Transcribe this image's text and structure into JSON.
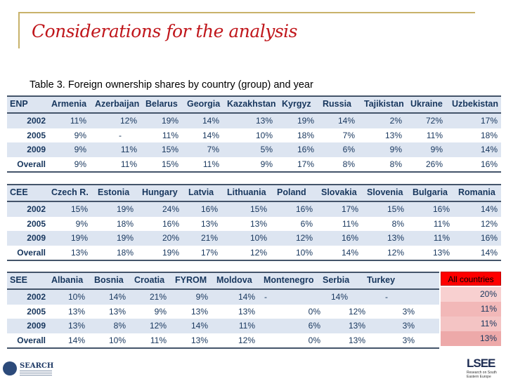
{
  "title": "Considerations for the analysis",
  "caption": "Table 3. Foreign ownership shares by country (group) and year",
  "tables": [
    {
      "group": "ENP",
      "columns": [
        "Armenia",
        "Azerbaijan",
        "Belarus",
        "Georgia",
        "Kazakhstan",
        "Kyrgyz",
        "Russia",
        "Tajikistan",
        "Ukraine",
        "Uzbekistan"
      ],
      "rows": [
        {
          "label": "2002",
          "values": [
            "11%",
            "12%",
            "19%",
            "14%",
            "13%",
            "19%",
            "14%",
            "2%",
            "72%",
            "17%"
          ]
        },
        {
          "label": "2005",
          "values": [
            "9%",
            "-",
            "11%",
            "14%",
            "10%",
            "18%",
            "7%",
            "13%",
            "11%",
            "18%"
          ]
        },
        {
          "label": "2009",
          "values": [
            "9%",
            "11%",
            "15%",
            "7%",
            "5%",
            "16%",
            "6%",
            "9%",
            "9%",
            "14%"
          ]
        },
        {
          "label": "Overall",
          "values": [
            "9%",
            "11%",
            "15%",
            "11%",
            "9%",
            "17%",
            "8%",
            "8%",
            "26%",
            "16%"
          ]
        }
      ]
    },
    {
      "group": "CEE",
      "columns": [
        "Czech R.",
        "Estonia",
        "Hungary",
        "Latvia",
        "Lithuania",
        "Poland",
        "Slovakia",
        "Slovenia",
        "Bulgaria",
        "Romania"
      ],
      "rows": [
        {
          "label": "2002",
          "values": [
            "15%",
            "19%",
            "24%",
            "16%",
            "15%",
            "16%",
            "17%",
            "15%",
            "16%",
            "14%"
          ]
        },
        {
          "label": "2005",
          "values": [
            "9%",
            "18%",
            "16%",
            "13%",
            "13%",
            "6%",
            "11%",
            "8%",
            "11%",
            "12%"
          ]
        },
        {
          "label": "2009",
          "values": [
            "19%",
            "19%",
            "20%",
            "21%",
            "10%",
            "12%",
            "16%",
            "13%",
            "11%",
            "16%"
          ]
        },
        {
          "label": "Overall",
          "values": [
            "13%",
            "18%",
            "19%",
            "17%",
            "12%",
            "10%",
            "14%",
            "12%",
            "13%",
            "14%"
          ]
        }
      ]
    },
    {
      "group": "SEE",
      "columns": [
        "Albania",
        "Bosnia",
        "Croatia",
        "FYROM",
        "Moldova",
        "Montenegro",
        "Serbia",
        "Turkey"
      ],
      "rows": [
        {
          "label": "2002",
          "values": [
            "10%",
            "14%",
            "21%",
            "9%",
            "14%",
            "-",
            "14%",
            "-"
          ]
        },
        {
          "label": "2005",
          "values": [
            "13%",
            "13%",
            "9%",
            "13%",
            "13%",
            "0%",
            "12%",
            "3%"
          ]
        },
        {
          "label": "2009",
          "values": [
            "13%",
            "8%",
            "12%",
            "14%",
            "11%",
            "6%",
            "13%",
            "3%"
          ]
        },
        {
          "label": "Overall",
          "values": [
            "14%",
            "10%",
            "11%",
            "13%",
            "12%",
            "0%",
            "13%",
            "3%"
          ]
        }
      ]
    }
  ],
  "all_countries": {
    "label": "All countries",
    "values": [
      "20%",
      "11%",
      "11%",
      "13%"
    ],
    "colors": [
      "#f8d0d0",
      "#f2b8b8",
      "#f4c4c4",
      "#eda9a9"
    ]
  },
  "logos": {
    "left": "SEARCH",
    "right": "LSEE",
    "right_tag": "Research on South Eastern Europe"
  },
  "accent_colors": {
    "title": "#c0161b",
    "frame": "#c8b26a",
    "table_text": "#17365d",
    "band": "#dde5f1"
  }
}
